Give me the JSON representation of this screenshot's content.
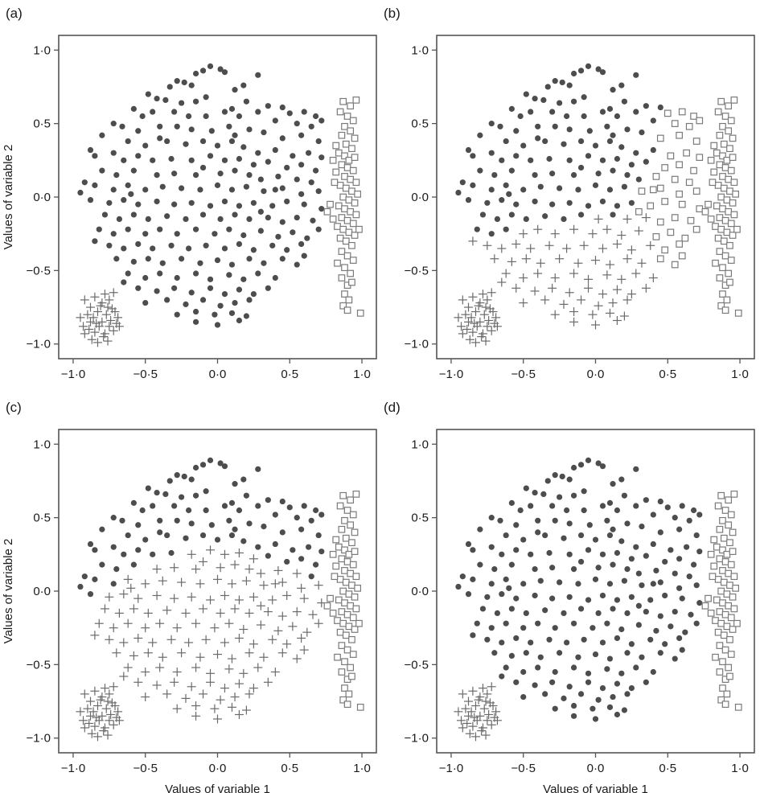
{
  "figure": {
    "xlabel": "Values of variable 1",
    "ylabel": "Values of variable 2",
    "colors": {
      "dot": "#4d4d4d",
      "cross": "#6b6b6b",
      "square": "#7a7a7a",
      "frame": "#555555"
    },
    "marker_icons": {
      "dot": "filled-circle-marker",
      "cross": "plus-marker",
      "square": "open-square-marker"
    }
  },
  "chart_data": [
    {
      "panel": "(a)",
      "type": "scatter",
      "xlim": [
        -1.1,
        1.1
      ],
      "ylim": [
        -1.1,
        1.1
      ],
      "xticks": [
        "−1·0",
        "−0·5",
        "0·0",
        "0·5",
        "1·0"
      ],
      "yticks": [
        "−1·0",
        "−0·5",
        "0·0",
        "0·5",
        "1·0"
      ],
      "xlabel": "",
      "ylabel": "Values of variable 2",
      "assignment": {
        "cross_rule": "lowerleft_only",
        "square_rule": "right_only"
      }
    },
    {
      "panel": "(b)",
      "type": "scatter",
      "xlim": [
        -1.1,
        1.1
      ],
      "ylim": [
        -1.1,
        1.1
      ],
      "xticks": [
        "−1·0",
        "−0·5",
        "0·0",
        "0·5",
        "1·0"
      ],
      "yticks": [
        "−1·0",
        "−0·5",
        "0·0",
        "0·5",
        "1·0"
      ],
      "xlabel": "",
      "ylabel": "",
      "assignment": {
        "cross_rule": "lower_left_of_diagonal",
        "square_rule": "right_of_diagonal"
      }
    },
    {
      "panel": "(c)",
      "type": "scatter",
      "xlim": [
        -1.1,
        1.1
      ],
      "ylim": [
        -1.1,
        1.1
      ],
      "xticks": [
        "−1·0",
        "−0·5",
        "0·0",
        "0·5",
        "1·0"
      ],
      "yticks": [
        "−1·0",
        "−0·5",
        "0·0",
        "0·5",
        "1·0"
      ],
      "xlabel": "Values of variable 1",
      "ylabel": "Values of variable 2",
      "assignment": {
        "cross_rule": "below_arc",
        "square_rule": "right_only"
      }
    },
    {
      "panel": "(d)",
      "type": "scatter",
      "xlim": [
        -1.1,
        1.1
      ],
      "ylim": [
        -1.1,
        1.1
      ],
      "xticks": [
        "−1·0",
        "−0·5",
        "0·0",
        "0·5",
        "1·0"
      ],
      "yticks": [
        "−1·0",
        "−0·5",
        "0·0",
        "0·5",
        "1·0"
      ],
      "xlabel": "Values of variable 1",
      "ylabel": "",
      "assignment": {
        "cross_rule": "lowerleft_only",
        "square_rule": "right_only"
      }
    }
  ],
  "points": {
    "lowerleft_cluster": [
      [
        -0.92,
        -0.7
      ],
      [
        -0.88,
        -0.75
      ],
      [
        -0.85,
        -0.68
      ],
      [
        -0.8,
        -0.72
      ],
      [
        -0.78,
        -0.66
      ],
      [
        -0.75,
        -0.7
      ],
      [
        -0.72,
        -0.65
      ],
      [
        -0.9,
        -0.8
      ],
      [
        -0.86,
        -0.82
      ],
      [
        -0.83,
        -0.78
      ],
      [
        -0.8,
        -0.85
      ],
      [
        -0.77,
        -0.8
      ],
      [
        -0.74,
        -0.84
      ],
      [
        -0.71,
        -0.78
      ],
      [
        -0.69,
        -0.82
      ],
      [
        -0.93,
        -0.88
      ],
      [
        -0.89,
        -0.9
      ],
      [
        -0.85,
        -0.92
      ],
      [
        -0.82,
        -0.88
      ],
      [
        -0.78,
        -0.93
      ],
      [
        -0.75,
        -0.88
      ],
      [
        -0.72,
        -0.91
      ],
      [
        -0.7,
        -0.86
      ],
      [
        -0.87,
        -0.97
      ],
      [
        -0.83,
        -0.99
      ],
      [
        -0.79,
        -0.95
      ],
      [
        -0.76,
        -0.98
      ],
      [
        -0.92,
        -0.93
      ],
      [
        -0.81,
        -0.74
      ],
      [
        -0.73,
        -0.76
      ],
      [
        -0.88,
        -0.85
      ],
      [
        -0.84,
        -0.86
      ],
      [
        -0.76,
        -0.75
      ],
      [
        -0.68,
        -0.88
      ],
      [
        -0.95,
        -0.82
      ]
    ],
    "right_cluster": [
      [
        0.87,
        0.65
      ],
      [
        0.92,
        0.62
      ],
      [
        0.96,
        0.66
      ],
      [
        0.85,
        0.58
      ],
      [
        0.9,
        0.55
      ],
      [
        0.94,
        0.52
      ],
      [
        0.88,
        0.48
      ],
      [
        0.92,
        0.45
      ],
      [
        0.86,
        0.42
      ],
      [
        0.95,
        0.4
      ],
      [
        0.89,
        0.36
      ],
      [
        0.93,
        0.33
      ],
      [
        0.84,
        0.3
      ],
      [
        0.88,
        0.28
      ],
      [
        0.91,
        0.25
      ],
      [
        0.95,
        0.27
      ],
      [
        0.86,
        0.22
      ],
      [
        0.9,
        0.2
      ],
      [
        0.94,
        0.18
      ],
      [
        0.82,
        0.17
      ],
      [
        0.88,
        0.14
      ],
      [
        0.92,
        0.12
      ],
      [
        0.96,
        0.1
      ],
      [
        0.85,
        0.08
      ],
      [
        0.89,
        0.06
      ],
      [
        0.93,
        0.04
      ],
      [
        0.97,
        0.02
      ],
      [
        0.87,
        0.0
      ],
      [
        0.91,
        -0.02
      ],
      [
        0.95,
        -0.04
      ],
      [
        0.84,
        -0.06
      ],
      [
        0.88,
        -0.08
      ],
      [
        0.92,
        -0.1
      ],
      [
        0.96,
        -0.12
      ],
      [
        0.86,
        -0.14
      ],
      [
        0.9,
        -0.16
      ],
      [
        0.94,
        -0.18
      ],
      [
        0.83,
        -0.2
      ],
      [
        0.87,
        -0.22
      ],
      [
        0.91,
        -0.24
      ],
      [
        0.95,
        -0.26
      ],
      [
        0.98,
        -0.22
      ],
      [
        0.85,
        -0.28
      ],
      [
        0.89,
        -0.3
      ],
      [
        0.93,
        -0.33
      ],
      [
        0.86,
        -0.37
      ],
      [
        0.9,
        -0.4
      ],
      [
        0.94,
        -0.43
      ],
      [
        0.83,
        -0.45
      ],
      [
        0.88,
        -0.48
      ],
      [
        0.92,
        -0.52
      ],
      [
        0.86,
        -0.55
      ],
      [
        0.9,
        -0.6
      ],
      [
        0.93,
        -0.58
      ],
      [
        0.88,
        -0.66
      ],
      [
        0.91,
        -0.7
      ],
      [
        0.87,
        -0.74
      ],
      [
        0.9,
        -0.77
      ],
      [
        0.99,
        -0.79
      ],
      [
        0.8,
        0.25
      ],
      [
        0.81,
        0.1
      ],
      [
        0.78,
        -0.05
      ],
      [
        0.8,
        -0.15
      ],
      [
        0.76,
        -0.1
      ],
      [
        0.82,
        0.35
      ]
    ],
    "middle_cloud": [
      [
        -0.05,
        0.89
      ],
      [
        0.02,
        0.87
      ],
      [
        -0.1,
        0.86
      ],
      [
        -0.15,
        0.84
      ],
      [
        0.05,
        0.85
      ],
      [
        0.28,
        0.83
      ],
      [
        -0.28,
        0.79
      ],
      [
        -0.23,
        0.78
      ],
      [
        -0.18,
        0.76
      ],
      [
        0.18,
        0.76
      ],
      [
        0.12,
        0.73
      ],
      [
        -0.33,
        0.75
      ],
      [
        -0.48,
        0.7
      ],
      [
        -0.42,
        0.67
      ],
      [
        -0.36,
        0.66
      ],
      [
        -0.25,
        0.64
      ],
      [
        -0.15,
        0.65
      ],
      [
        -0.08,
        0.68
      ],
      [
        0.2,
        0.65
      ],
      [
        0.35,
        0.62
      ],
      [
        0.45,
        0.61
      ],
      [
        0.5,
        0.57
      ],
      [
        0.6,
        0.58
      ],
      [
        0.68,
        0.55
      ],
      [
        -0.58,
        0.6
      ],
      [
        -0.52,
        0.55
      ],
      [
        -0.45,
        0.58
      ],
      [
        -0.3,
        0.58
      ],
      [
        -0.2,
        0.55
      ],
      [
        -0.08,
        0.55
      ],
      [
        0.05,
        0.58
      ],
      [
        0.15,
        0.55
      ],
      [
        0.28,
        0.58
      ],
      [
        0.4,
        0.52
      ],
      [
        0.55,
        0.5
      ],
      [
        0.65,
        0.48
      ],
      [
        0.72,
        0.52
      ],
      [
        -0.72,
        0.5
      ],
      [
        -0.66,
        0.48
      ],
      [
        -0.55,
        0.45
      ],
      [
        -0.4,
        0.48
      ],
      [
        -0.28,
        0.48
      ],
      [
        -0.18,
        0.46
      ],
      [
        -0.04,
        0.45
      ],
      [
        0.08,
        0.48
      ],
      [
        0.12,
        0.42
      ],
      [
        0.22,
        0.46
      ],
      [
        0.32,
        0.44
      ],
      [
        0.45,
        0.4
      ],
      [
        0.58,
        0.42
      ],
      [
        0.7,
        0.38
      ],
      [
        -0.8,
        0.42
      ],
      [
        -0.62,
        0.38
      ],
      [
        -0.5,
        0.35
      ],
      [
        -0.35,
        0.38
      ],
      [
        -0.22,
        0.36
      ],
      [
        -0.1,
        0.38
      ],
      [
        0.0,
        0.35
      ],
      [
        0.1,
        0.38
      ],
      [
        0.18,
        0.34
      ],
      [
        0.28,
        0.3
      ],
      [
        0.4,
        0.32
      ],
      [
        0.52,
        0.28
      ],
      [
        0.63,
        0.3
      ],
      [
        0.72,
        0.27
      ],
      [
        -0.88,
        0.32
      ],
      [
        -0.85,
        0.28
      ],
      [
        -0.72,
        0.3
      ],
      [
        -0.65,
        0.25
      ],
      [
        -0.55,
        0.28
      ],
      [
        -0.45,
        0.25
      ],
      [
        -0.32,
        0.26
      ],
      [
        -0.18,
        0.25
      ],
      [
        -0.05,
        0.28
      ],
      [
        0.05,
        0.25
      ],
      [
        0.15,
        0.26
      ],
      [
        0.25,
        0.22
      ],
      [
        0.35,
        0.24
      ],
      [
        0.48,
        0.2
      ],
      [
        0.58,
        0.22
      ],
      [
        0.68,
        0.18
      ],
      [
        -0.8,
        0.18
      ],
      [
        -0.7,
        0.15
      ],
      [
        -0.58,
        0.18
      ],
      [
        -0.42,
        0.15
      ],
      [
        -0.3,
        0.16
      ],
      [
        -0.15,
        0.15
      ],
      [
        0.02,
        0.16
      ],
      [
        0.12,
        0.18
      ],
      [
        0.22,
        0.15
      ],
      [
        0.3,
        0.12
      ],
      [
        0.42,
        0.14
      ],
      [
        0.55,
        0.12
      ],
      [
        0.65,
        0.1
      ],
      [
        -0.92,
        0.1
      ],
      [
        -0.85,
        0.08
      ],
      [
        -0.72,
        0.05
      ],
      [
        -0.62,
        0.08
      ],
      [
        -0.5,
        0.05
      ],
      [
        -0.38,
        0.07
      ],
      [
        -0.25,
        0.06
      ],
      [
        -0.12,
        0.05
      ],
      [
        0.0,
        0.08
      ],
      [
        0.1,
        0.05
      ],
      [
        0.2,
        0.07
      ],
      [
        0.32,
        0.04
      ],
      [
        0.45,
        0.06
      ],
      [
        0.58,
        0.02
      ],
      [
        0.7,
        0.04
      ],
      [
        -0.95,
        0.03
      ],
      [
        -0.88,
        -0.02
      ],
      [
        -0.75,
        -0.04
      ],
      [
        -0.65,
        -0.02
      ],
      [
        -0.55,
        -0.05
      ],
      [
        -0.42,
        -0.03
      ],
      [
        -0.3,
        -0.05
      ],
      [
        -0.18,
        -0.04
      ],
      [
        -0.05,
        -0.06
      ],
      [
        0.05,
        -0.03
      ],
      [
        0.15,
        -0.06
      ],
      [
        0.25,
        -0.04
      ],
      [
        0.38,
        -0.06
      ],
      [
        0.48,
        -0.03
      ],
      [
        0.6,
        -0.05
      ],
      [
        0.72,
        -0.08
      ],
      [
        -0.78,
        -0.12
      ],
      [
        -0.68,
        -0.15
      ],
      [
        -0.58,
        -0.12
      ],
      [
        -0.48,
        -0.15
      ],
      [
        -0.35,
        -0.13
      ],
      [
        -0.22,
        -0.15
      ],
      [
        -0.1,
        -0.12
      ],
      [
        0.02,
        -0.15
      ],
      [
        0.12,
        -0.12
      ],
      [
        0.22,
        -0.15
      ],
      [
        0.35,
        -0.14
      ],
      [
        0.45,
        -0.17
      ],
      [
        0.55,
        -0.14
      ],
      [
        0.66,
        -0.16
      ],
      [
        -0.82,
        -0.22
      ],
      [
        -0.72,
        -0.25
      ],
      [
        -0.62,
        -0.22
      ],
      [
        -0.5,
        -0.25
      ],
      [
        -0.4,
        -0.22
      ],
      [
        -0.28,
        -0.25
      ],
      [
        -0.15,
        -0.22
      ],
      [
        -0.02,
        -0.25
      ],
      [
        0.08,
        -0.22
      ],
      [
        0.18,
        -0.26
      ],
      [
        0.3,
        -0.23
      ],
      [
        0.42,
        -0.27
      ],
      [
        0.52,
        -0.24
      ],
      [
        0.62,
        -0.28
      ],
      [
        0.7,
        -0.22
      ],
      [
        -0.85,
        -0.3
      ],
      [
        -0.75,
        -0.33
      ],
      [
        -0.65,
        -0.35
      ],
      [
        -0.55,
        -0.32
      ],
      [
        -0.45,
        -0.35
      ],
      [
        -0.32,
        -0.33
      ],
      [
        -0.2,
        -0.35
      ],
      [
        -0.08,
        -0.33
      ],
      [
        0.05,
        -0.35
      ],
      [
        0.15,
        -0.32
      ],
      [
        0.25,
        -0.36
      ],
      [
        0.38,
        -0.33
      ],
      [
        0.48,
        -0.36
      ],
      [
        0.58,
        -0.32
      ],
      [
        -0.7,
        -0.42
      ],
      [
        -0.58,
        -0.44
      ],
      [
        -0.48,
        -0.42
      ],
      [
        -0.38,
        -0.45
      ],
      [
        -0.25,
        -0.42
      ],
      [
        -0.12,
        -0.45
      ],
      [
        0.0,
        -0.43
      ],
      [
        0.1,
        -0.46
      ],
      [
        0.22,
        -0.42
      ],
      [
        0.32,
        -0.45
      ],
      [
        0.45,
        -0.42
      ],
      [
        0.55,
        -0.46
      ],
      [
        -0.62,
        -0.52
      ],
      [
        -0.5,
        -0.55
      ],
      [
        -0.4,
        -0.52
      ],
      [
        -0.28,
        -0.55
      ],
      [
        -0.15,
        -0.52
      ],
      [
        -0.05,
        -0.56
      ],
      [
        0.08,
        -0.53
      ],
      [
        0.18,
        -0.56
      ],
      [
        0.28,
        -0.52
      ],
      [
        0.4,
        -0.55
      ],
      [
        -0.55,
        -0.62
      ],
      [
        -0.42,
        -0.64
      ],
      [
        -0.3,
        -0.62
      ],
      [
        -0.18,
        -0.65
      ],
      [
        -0.05,
        -0.62
      ],
      [
        0.05,
        -0.66
      ],
      [
        0.15,
        -0.63
      ],
      [
        0.25,
        -0.66
      ],
      [
        0.35,
        -0.62
      ],
      [
        -0.5,
        -0.72
      ],
      [
        -0.35,
        -0.7
      ],
      [
        -0.22,
        -0.73
      ],
      [
        -0.1,
        -0.7
      ],
      [
        0.02,
        -0.74
      ],
      [
        0.12,
        -0.72
      ],
      [
        0.22,
        -0.7
      ],
      [
        -0.28,
        -0.8
      ],
      [
        -0.15,
        -0.78
      ],
      [
        -0.02,
        -0.8
      ],
      [
        0.1,
        -0.79
      ],
      [
        0.2,
        -0.81
      ],
      [
        -0.15,
        -0.85
      ],
      [
        0.0,
        -0.87
      ],
      [
        0.15,
        -0.84
      ],
      [
        -0.6,
        0.02
      ],
      [
        0.6,
        -0.4
      ],
      [
        -0.65,
        -0.58
      ],
      [
        0.4,
        0.05
      ],
      [
        -0.4,
        0.4
      ],
      [
        0.1,
        0.6
      ],
      [
        -0.1,
        0.2
      ],
      [
        0.3,
        -0.1
      ]
    ]
  }
}
